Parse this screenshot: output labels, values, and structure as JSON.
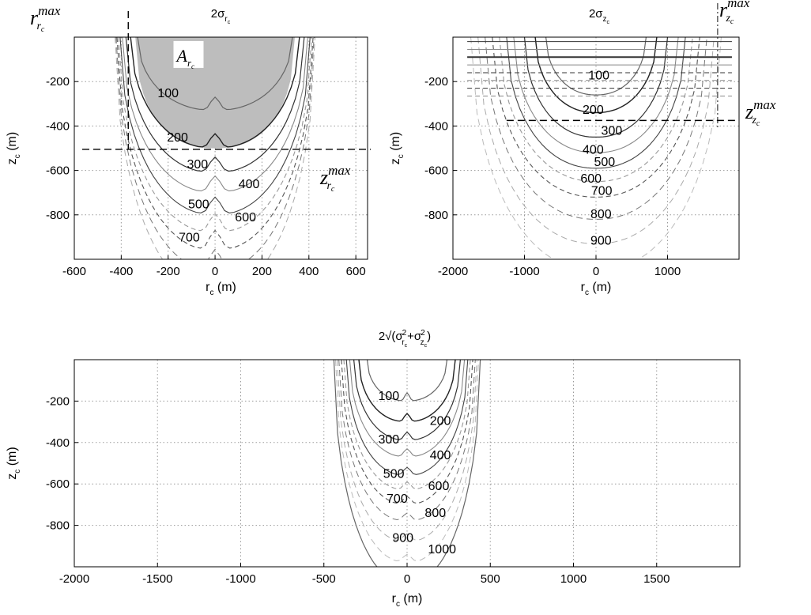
{
  "chart_data": [
    {
      "type": "contour",
      "title": "2σ_{r_c}",
      "title_main": "2σ",
      "title_sub": "r",
      "title_subsub": "c",
      "xlabel": "r_c (m)",
      "xlabel_main": "r",
      "xlabel_sub": "c",
      "xlabel_unit": " (m)",
      "ylabel": "z_c (m)",
      "ylabel_main": "z",
      "ylabel_sub": "c",
      "ylabel_unit": " (m)",
      "xlim": [
        -600,
        650
      ],
      "ylim": [
        -1000,
        0
      ],
      "xticks": [
        -600,
        -400,
        -200,
        0,
        200,
        400,
        600
      ],
      "yticks": [
        -200,
        -400,
        -600,
        -800
      ],
      "xtick_labels": [
        "-600",
        "-400",
        "-200",
        "0",
        "200",
        "400",
        "600"
      ],
      "ytick_labels": [
        "-200",
        "-400",
        "-600",
        "-800"
      ],
      "grid": true,
      "shaded_region_label": "A_{r_c}",
      "shaded_region_main": "A",
      "shaded_region_sub": "r",
      "shaded_region_subsub": "c",
      "contour_level_labels": [
        {
          "level": "100",
          "x": -200,
          "y": -270
        },
        {
          "level": "200",
          "x": -160,
          "y": -470
        },
        {
          "level": "300",
          "x": -75,
          "y": -590
        },
        {
          "level": "400",
          "x": 145,
          "y": -680
        },
        {
          "level": "500",
          "x": -70,
          "y": -770
        },
        {
          "level": "600",
          "x": 130,
          "y": -830
        },
        {
          "level": "700",
          "x": -110,
          "y": -920
        }
      ],
      "reference_lines": [
        {
          "orientation": "vertical",
          "value": -370,
          "label_main": "r",
          "label_sup": "max",
          "label_sub": "r",
          "label_subsub": "c"
        },
        {
          "orientation": "horizontal",
          "value": -505,
          "label_main": "z",
          "label_sup": "max",
          "label_sub": "r",
          "label_subsub": "c"
        }
      ]
    },
    {
      "type": "contour",
      "title": "2σ_{z_c}",
      "title_main": "2σ",
      "title_sub": "z",
      "title_subsub": "c",
      "xlabel": "r_c (m)",
      "xlabel_main": "r",
      "xlabel_sub": "c",
      "xlabel_unit": " (m)",
      "ylabel": "z_c (m)",
      "ylabel_main": "z",
      "ylabel_sub": "c",
      "ylabel_unit": " (m)",
      "xlim": [
        -2000,
        2000
      ],
      "ylim": [
        -1000,
        0
      ],
      "xticks": [
        -2000,
        -1000,
        0,
        1000
      ],
      "yticks": [
        -200,
        -400,
        -600,
        -800
      ],
      "xtick_labels": [
        "-2000",
        "-1000",
        "0",
        "1000"
      ],
      "ytick_labels": [
        "-200",
        "-400",
        "-600",
        "-800"
      ],
      "grid": true,
      "contour_level_labels": [
        {
          "level": "100",
          "x": 40,
          "y": -190
        },
        {
          "level": "200",
          "x": -40,
          "y": -345
        },
        {
          "level": "300",
          "x": 220,
          "y": -440
        },
        {
          "level": "400",
          "x": -40,
          "y": -525
        },
        {
          "level": "500",
          "x": 120,
          "y": -580
        },
        {
          "level": "600",
          "x": -70,
          "y": -655
        },
        {
          "level": "700",
          "x": 80,
          "y": -710
        },
        {
          "level": "800",
          "x": 70,
          "y": -815
        },
        {
          "level": "900",
          "x": 70,
          "y": -935
        }
      ],
      "reference_lines": [
        {
          "orientation": "vertical",
          "value": 1700,
          "label_main": "r",
          "label_sup": "max",
          "label_sub": "z",
          "label_subsub": "c"
        },
        {
          "orientation": "horizontal",
          "value": -375,
          "label_main": "z",
          "label_sup": "max",
          "label_sub": "z",
          "label_subsub": "c"
        }
      ]
    },
    {
      "type": "contour",
      "title": "2√(σ²_{r_c}+σ²_{z_c})",
      "title_prefix": "2√(σ",
      "title_mid": "+σ",
      "title_suffix": ")",
      "title_sup": "2",
      "title_sub_r": "r",
      "title_sub_z": "z",
      "title_subsub": "c",
      "xlabel": "r_c (m)",
      "xlabel_main": "r",
      "xlabel_sub": "c",
      "xlabel_unit": " (m)",
      "ylabel": "z_c (m)",
      "ylabel_main": "z",
      "ylabel_sub": "c",
      "ylabel_unit": " (m)",
      "xlim": [
        -2000,
        2000
      ],
      "ylim": [
        -1000,
        0
      ],
      "xticks": [
        -2000,
        -1500,
        -1000,
        -500,
        0,
        500,
        1000,
        1500
      ],
      "yticks": [
        -200,
        -400,
        -600,
        -800
      ],
      "xtick_labels": [
        "-2000",
        "-1500",
        "-1000",
        "-500",
        "0",
        "500",
        "1000",
        "1500"
      ],
      "ytick_labels": [
        "-200",
        "-400",
        "-600",
        "-800"
      ],
      "grid": true,
      "contour_level_labels": [
        {
          "level": "100",
          "x": -110,
          "y": -195
        },
        {
          "level": "200",
          "x": 200,
          "y": -315
        },
        {
          "level": "300",
          "x": -110,
          "y": -405
        },
        {
          "level": "400",
          "x": 200,
          "y": -480
        },
        {
          "level": "500",
          "x": -80,
          "y": -570
        },
        {
          "level": "600",
          "x": 190,
          "y": -630
        },
        {
          "level": "700",
          "x": -60,
          "y": -690
        },
        {
          "level": "800",
          "x": 170,
          "y": -760
        },
        {
          "level": "900",
          "x": -25,
          "y": -880
        },
        {
          "level": "1000",
          "x": 210,
          "y": -935
        }
      ]
    }
  ]
}
